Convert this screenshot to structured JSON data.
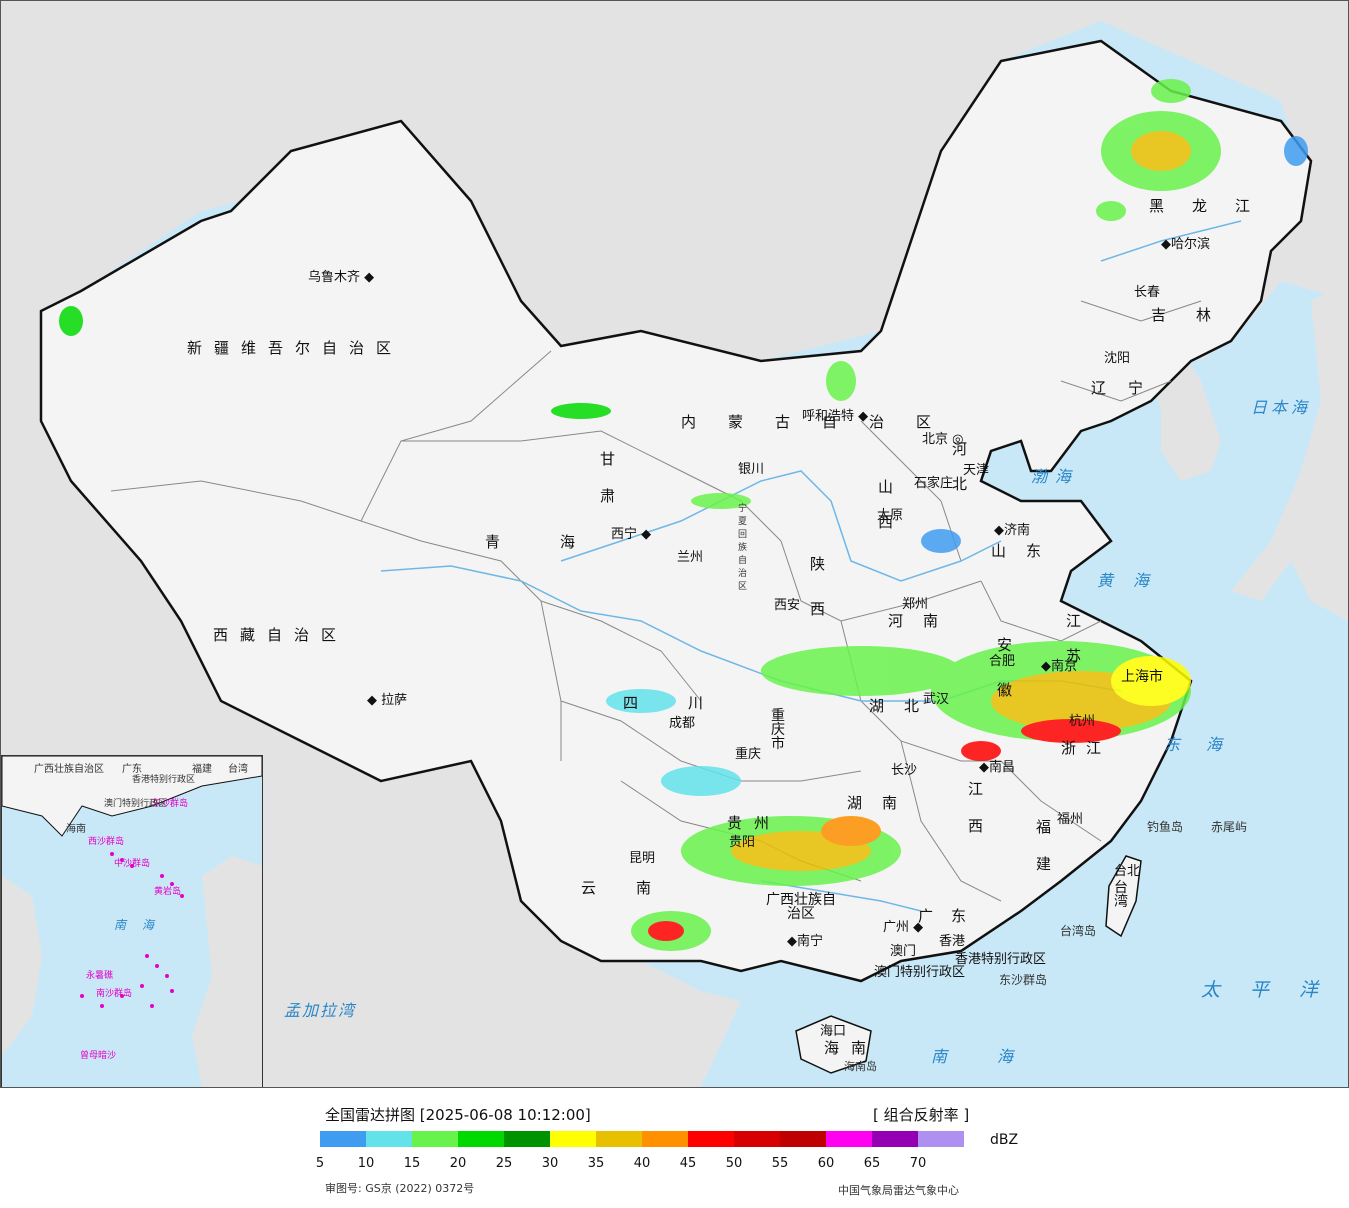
{
  "map": {
    "colors": {
      "sea": "#c9e8f7",
      "land_outside": "#e3e3e3",
      "china": "#f4f4f4",
      "border": "#111111",
      "river": "#6fb7e6"
    },
    "regions": [
      "新疆维吾尔自治区",
      "西藏自治区",
      "青海",
      "甘肃",
      "内蒙古自治区",
      "四川",
      "云南",
      "广西壮族自治区",
      "黑龙江",
      "吉林",
      "辽宁",
      "河北",
      "山西",
      "陕西",
      "河南",
      "山东",
      "江苏",
      "安徽",
      "湖北",
      "湖南",
      "江西",
      "浙江",
      "福建",
      "广东",
      "贵州",
      "重庆市",
      "海南",
      "台湾",
      "宁夏回族自治区"
    ],
    "cities": [
      "乌鲁木齐",
      "拉萨",
      "西宁",
      "兰州",
      "银川",
      "呼和浩特",
      "北京",
      "天津",
      "石家庄",
      "太原",
      "济南",
      "郑州",
      "西安",
      "成都",
      "重庆",
      "昆明",
      "贵阳",
      "南宁",
      "长沙",
      "武汉",
      "合肥",
      "南京",
      "上海市",
      "杭州",
      "南昌",
      "福州",
      "台北",
      "广州",
      "香港",
      "澳门",
      "海口",
      "哈尔滨",
      "长春",
      "沈阳"
    ],
    "seas": [
      "日本海",
      "渤海",
      "黄海",
      "东海",
      "太平洋",
      "南海",
      "孟加拉湾"
    ],
    "islands": [
      "钓鱼岛",
      "赤尾屿",
      "东沙群岛",
      "台湾岛",
      "海南岛"
    ],
    "special": [
      "香港特别行政区",
      "澳门特别行政区"
    ]
  },
  "inset": {
    "labels": [
      "广西壮族自治区",
      "广东",
      "福建",
      "台湾",
      "海南",
      "南海",
      "西沙群岛",
      "中沙群岛",
      "南沙群岛",
      "东沙群岛",
      "黄岩岛",
      "永暑礁",
      "曾母暗沙",
      "香港特别行政区",
      "澳门特别行政区"
    ]
  },
  "legend": {
    "title": "全国雷达拼图 [2025-06-08 10:12:00]",
    "product": "[ 组合反射率 ]",
    "unit": "dBZ",
    "ticks": [
      "5",
      "10",
      "15",
      "20",
      "25",
      "30",
      "35",
      "40",
      "45",
      "50",
      "55",
      "60",
      "65",
      "70"
    ],
    "colors": [
      "#409cf0",
      "#63e2ea",
      "#68f24c",
      "#00d900",
      "#009300",
      "#ffff00",
      "#e7c000",
      "#ff9000",
      "#ff0000",
      "#d60000",
      "#c00000",
      "#ff00f0",
      "#9600b4",
      "#ad90f0"
    ],
    "review_no": "审图号: GS京 (2022) 0372号",
    "producer": "中国气象局雷达气象中心"
  }
}
